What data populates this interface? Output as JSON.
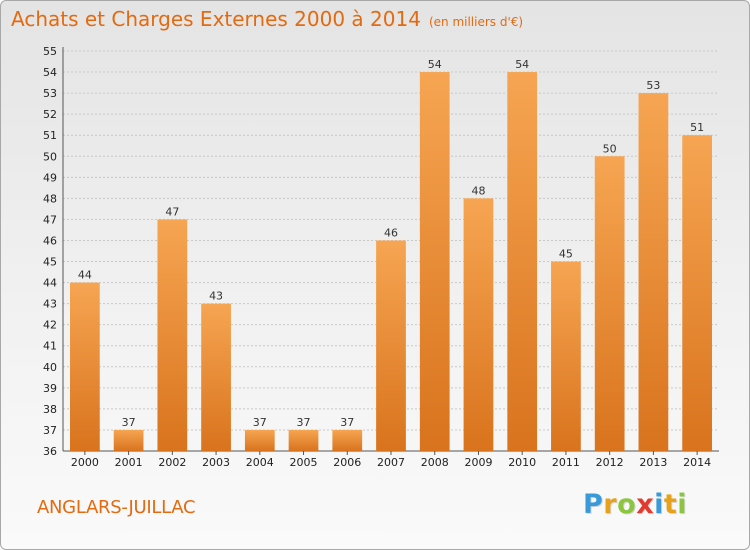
{
  "header": {
    "title": "Achats et Charges Externes 2000 à 2014",
    "unit": "(en milliers d'€)"
  },
  "footer": {
    "commune": "ANGLARS-JUILLAC",
    "brand": "Proxiti",
    "brand_letters": [
      {
        "char": "P",
        "color": "#3a9ad9"
      },
      {
        "char": "r",
        "color": "#e8a21a"
      },
      {
        "char": "o",
        "color": "#8cc63e"
      },
      {
        "char": "x",
        "color": "#e23a2e"
      },
      {
        "char": "i",
        "color": "#3a9ad9"
      },
      {
        "char": "t",
        "color": "#e8a21a"
      },
      {
        "char": "i",
        "color": "#8cc63e"
      }
    ]
  },
  "colors": {
    "accent": "#e36a10",
    "bar_light": "#f6a552",
    "bar_dark": "#d9731d",
    "grid": "#c8c8c8",
    "axis_text": "#222222"
  },
  "chart_data": {
    "type": "bar",
    "title": "Achats et Charges Externes 2000 à 2014",
    "xlabel": "",
    "ylabel": "",
    "categories": [
      "2000",
      "2001",
      "2002",
      "2003",
      "2004",
      "2005",
      "2006",
      "2007",
      "2008",
      "2009",
      "2010",
      "2011",
      "2012",
      "2013",
      "2014"
    ],
    "values": [
      44,
      37,
      47,
      43,
      37,
      37,
      37,
      46,
      54,
      48,
      54,
      45,
      50,
      53,
      51
    ],
    "ylim": [
      36,
      55
    ],
    "yticks": [
      36,
      37,
      38,
      39,
      40,
      41,
      42,
      43,
      44,
      45,
      46,
      47,
      48,
      49,
      50,
      51,
      52,
      53,
      54,
      55
    ],
    "grid": true
  }
}
